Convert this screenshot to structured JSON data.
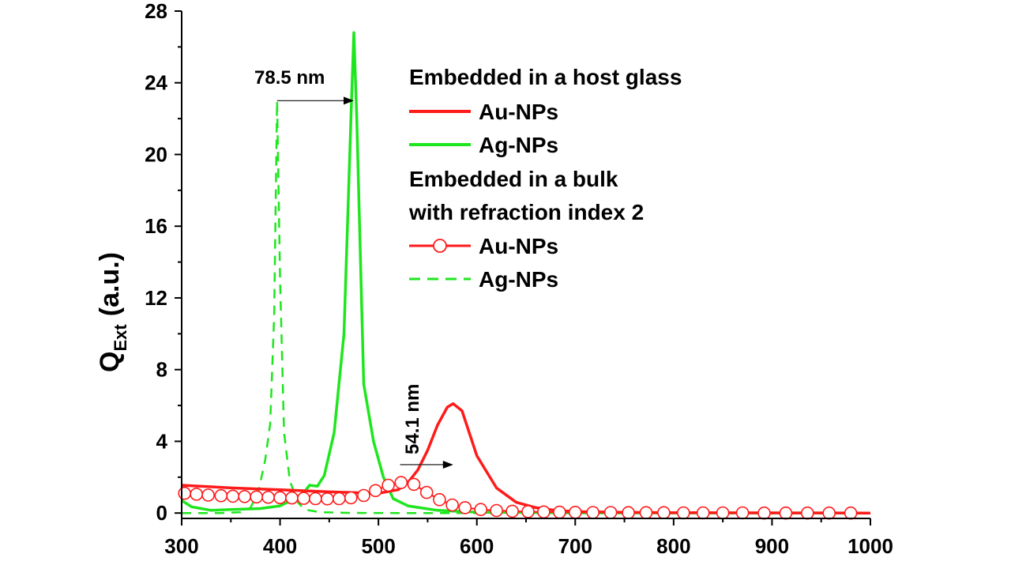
{
  "chart_data": {
    "type": "line",
    "title": "",
    "xlabel": "",
    "ylabel_main": "Q",
    "ylabel_sub": "Ext",
    "ylabel_suffix": "(a.u.)",
    "xlim": [
      300,
      1000
    ],
    "ylim": [
      -0.3,
      28
    ],
    "xticks": [
      300,
      400,
      500,
      600,
      700,
      800,
      900,
      1000
    ],
    "yticks": [
      0,
      4,
      8,
      12,
      16,
      20,
      24,
      28
    ],
    "grid": false,
    "legend_position": "top-right",
    "legend": {
      "group1_title": "Embedded in a host glass",
      "group2_title_line1": "Embedded in a bulk",
      "group2_title_line2": "with refraction index 2",
      "entries": [
        "Au-NPs",
        "Ag-NPs",
        "Au-NPs",
        "Ag-NPs"
      ]
    },
    "annotations": [
      {
        "text": "78.5 nm",
        "from_x": 397,
        "to_x": 475,
        "y": 23.0
      },
      {
        "text": "54.1 nm",
        "from_x": 522,
        "to_x": 576,
        "y": 2.7
      }
    ],
    "colors": {
      "au": "#ff1a1a",
      "ag": "#1ee61e",
      "axis": "#000000"
    },
    "series": [
      {
        "name": "Au-NPs",
        "group": "host glass",
        "style": "solid",
        "color": "#ff1a1a",
        "x": [
          300,
          350,
          400,
          450,
          500,
          520,
          530,
          540,
          550,
          560,
          570,
          576,
          585,
          600,
          620,
          640,
          660,
          680,
          700,
          750,
          800,
          900,
          1000
        ],
        "y": [
          1.55,
          1.4,
          1.3,
          1.18,
          1.1,
          1.3,
          1.7,
          2.4,
          3.5,
          4.9,
          5.9,
          6.1,
          5.7,
          3.2,
          1.4,
          0.6,
          0.3,
          0.15,
          0.08,
          0.04,
          0.02,
          0.01,
          0.0
        ]
      },
      {
        "name": "Ag-NPs",
        "group": "host glass",
        "style": "solid",
        "color": "#1ee61e",
        "x": [
          300,
          310,
          330,
          350,
          380,
          400,
          415,
          425,
          430,
          438,
          445,
          455,
          465,
          472,
          475,
          478,
          485,
          495,
          505,
          515,
          530,
          560,
          600,
          700,
          1000
        ],
        "y": [
          0.7,
          0.35,
          0.15,
          0.2,
          0.25,
          0.4,
          0.8,
          1.2,
          1.55,
          1.5,
          2.1,
          4.5,
          10.0,
          22.0,
          26.8,
          22.0,
          7.2,
          4.0,
          2.0,
          0.8,
          0.4,
          0.15,
          0.05,
          0.01,
          0.0
        ]
      },
      {
        "name": "Au-NPs",
        "group": "refraction index 2",
        "style": "circles",
        "color": "#ff1a1a",
        "x": [
          303,
          315,
          327,
          340,
          352,
          364,
          376,
          388,
          400,
          412,
          424,
          436,
          448,
          460,
          472,
          485,
          497,
          510,
          523,
          536,
          549,
          562,
          575,
          588,
          604,
          620,
          636,
          652,
          668,
          684,
          700,
          718,
          736,
          754,
          772,
          790,
          810,
          830,
          850,
          870,
          892,
          914,
          936,
          958,
          980
        ],
        "y": [
          1.1,
          1.05,
          1.0,
          0.97,
          0.94,
          0.92,
          0.9,
          0.88,
          0.86,
          0.84,
          0.82,
          0.8,
          0.79,
          0.8,
          0.85,
          0.98,
          1.25,
          1.55,
          1.7,
          1.6,
          1.15,
          0.75,
          0.45,
          0.3,
          0.2,
          0.14,
          0.1,
          0.08,
          0.06,
          0.05,
          0.04,
          0.03,
          0.03,
          0.02,
          0.02,
          0.02,
          0.01,
          0.01,
          0.01,
          0.01,
          0.0,
          0.0,
          0.0,
          0.0,
          0.0
        ]
      },
      {
        "name": "Ag-NPs",
        "group": "refraction index 2",
        "style": "dashed",
        "color": "#1ee61e",
        "x": [
          300,
          340,
          360,
          370,
          378,
          385,
          390,
          394,
          397,
          400,
          404,
          410,
          418,
          425,
          440,
          470,
          520,
          600,
          1000
        ],
        "y": [
          0.0,
          0.0,
          0.05,
          0.3,
          1.2,
          3.0,
          5.0,
          11.0,
          23.0,
          13.0,
          4.5,
          1.8,
          0.6,
          0.2,
          0.05,
          0.01,
          0.0,
          0.0,
          0.0
        ]
      }
    ]
  }
}
